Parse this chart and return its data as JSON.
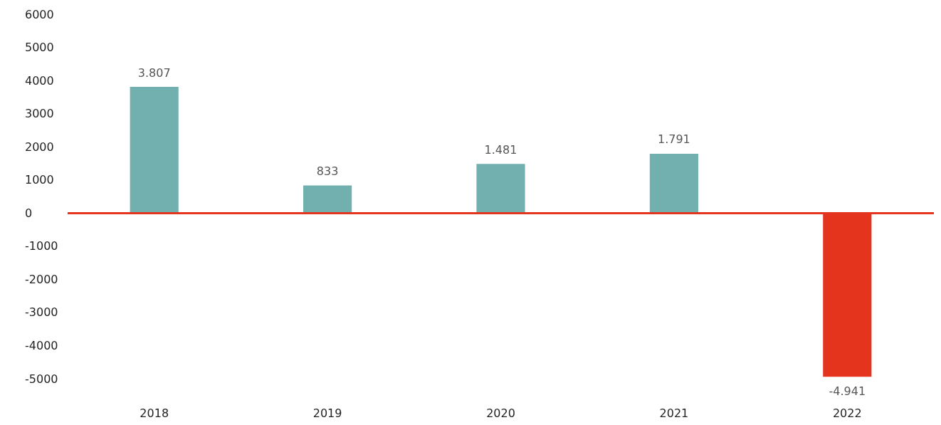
{
  "chart_data": {
    "type": "bar",
    "categories": [
      "2018",
      "2019",
      "2020",
      "2021",
      "2022"
    ],
    "values": [
      3807,
      833,
      1481,
      1791,
      -4941
    ],
    "colors": [
      "#72b0b0",
      "#72b0b0",
      "#72b0b0",
      "#72b0b0",
      "#e5341d"
    ],
    "value_labels": [
      "3.807",
      "833",
      "1.481",
      "1.791",
      "-4.941"
    ],
    "ylim": [
      -5000,
      6000
    ],
    "yticks": [
      -5000,
      -4000,
      -3000,
      -2000,
      -1000,
      0,
      1000,
      2000,
      3000,
      4000,
      5000,
      6000
    ],
    "grid": false,
    "ref_lines": [
      {
        "axis": "y",
        "value": 0,
        "color": "#e5341d"
      }
    ]
  }
}
